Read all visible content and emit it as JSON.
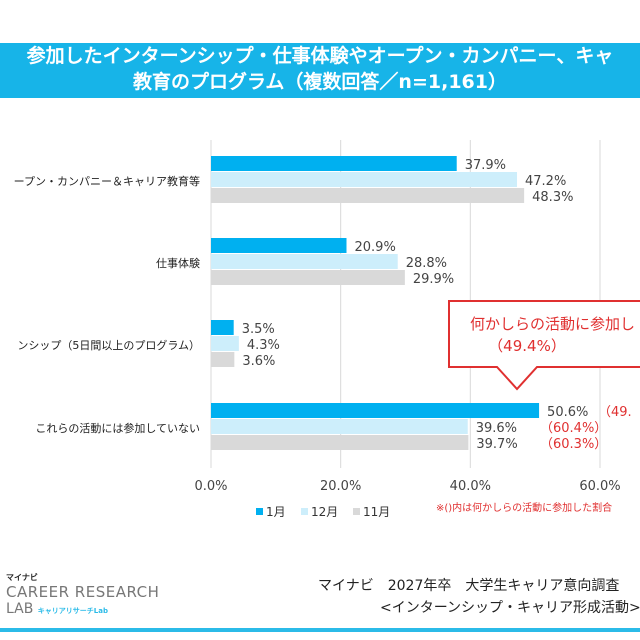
{
  "header": {
    "line1": "参加したインターンシップ・仕事体験やオープン・カンパニー、キャ",
    "line2": "教育のプログラム（複数回答／n=1,161）"
  },
  "chart_data": {
    "type": "bar",
    "orientation": "horizontal",
    "categories": [
      "ープン・カンパニー＆キャリア教育等",
      "仕事体験",
      "ンシップ（5日間以上のプログラム）",
      "これらの活動には参加していない"
    ],
    "series": [
      {
        "name": "1月",
        "color": "#00b0f0",
        "values": [
          37.9,
          20.9,
          3.5,
          50.6
        ],
        "labels": [
          "37.9%",
          "20.9%",
          "3.5%",
          "50.6%"
        ]
      },
      {
        "name": "12月",
        "color": "#cdeefb",
        "values": [
          47.2,
          28.8,
          4.3,
          39.6
        ],
        "labels": [
          "47.2%",
          "28.8%",
          "4.3%",
          "39.6%"
        ]
      },
      {
        "name": "11月",
        "color": "#d9d9d9",
        "values": [
          48.3,
          29.9,
          3.6,
          39.7
        ],
        "labels": [
          "48.3%",
          "29.9%",
          "3.6%",
          "39.7%"
        ]
      }
    ],
    "participated_labels": [
      "（49.",
      "（60.4%）",
      "（60.3%）"
    ],
    "xlim": [
      0,
      60
    ],
    "xticks": [
      "0.0%",
      "20.0%",
      "40.0%",
      "60.0%"
    ],
    "grid": true,
    "legend": "bottom",
    "callout": {
      "line1": "何かしらの活動に参加し",
      "line2": "（49.4%）",
      "color": "#e03030"
    },
    "note": "※()内は何かしらの活動に参加した割合"
  },
  "footer": {
    "brand_small": "マイナビ",
    "brand_main": "CAREER RESEARCH",
    "brand_lab": "LAB",
    "brand_sub": "キャリアリサーチLab",
    "title1": "マイナビ　2027年卒　大学生キャリア意向調査",
    "title2": "<インターンシップ・キャリア形成活動>"
  }
}
